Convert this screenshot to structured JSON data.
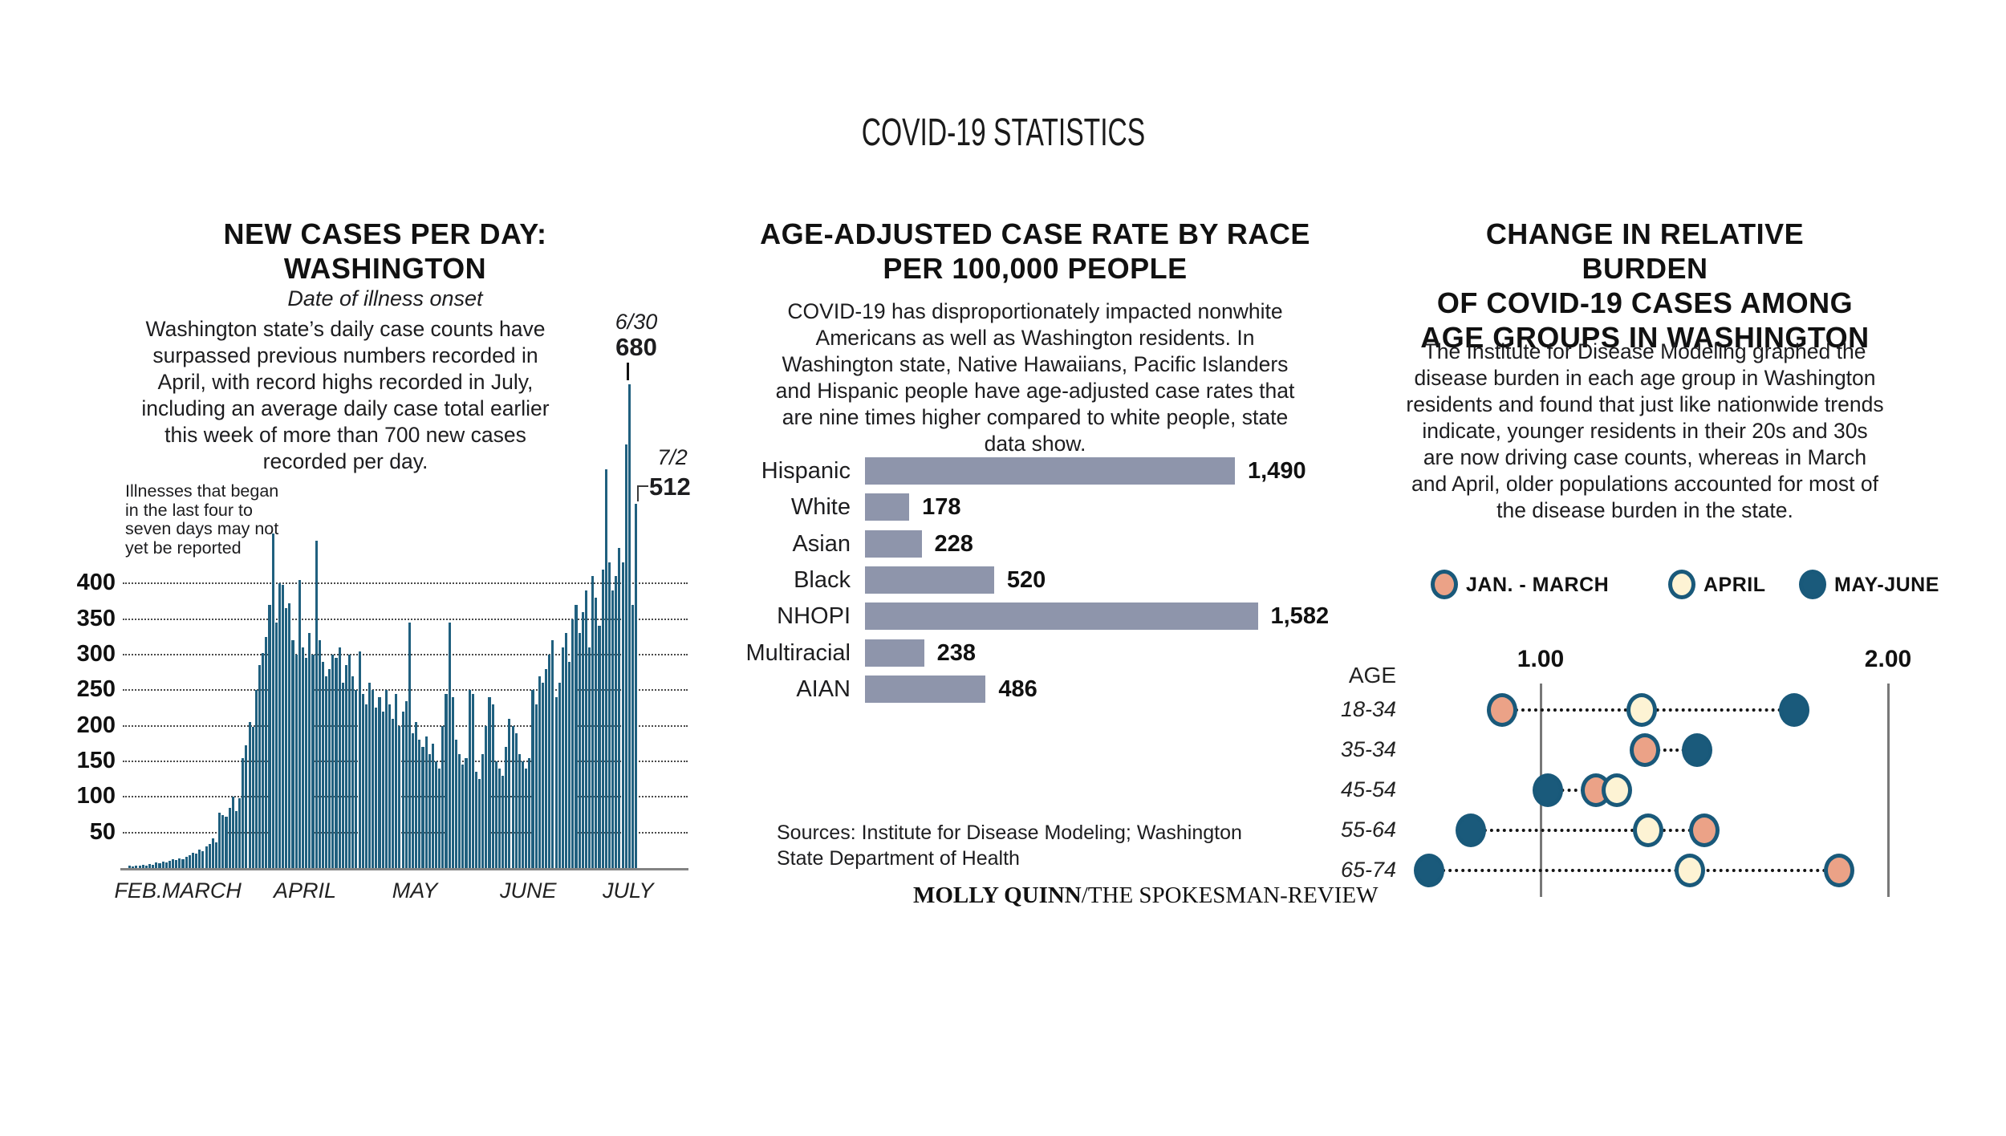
{
  "page_title": "COVID-19 STATISTICS",
  "colors": {
    "bar_teal": "#20607f",
    "bar_gray": "#8e95ab",
    "dot_jan_march": "#eba287",
    "dot_april": "#fdf3d4",
    "dot_may_june": "#1a5a7b",
    "dot_outline": "#19597a",
    "grid_dot": "#4a4a4a",
    "axis_gray": "#838383",
    "text": "#1d1d1f"
  },
  "left": {
    "title_line1": "NEW CASES PER DAY:",
    "title_line2": "WASHINGTON",
    "subtitle": "Date of illness onset",
    "description": "Washington state’s daily case counts have surpassed previous numbers recorded in April, with record highs recorded in July, including an average daily case total earlier this week of more than 700 new cases recorded per day.",
    "note": "Illnesses that began in the last four to seven days may not yet be reported"
  },
  "middle": {
    "title_line1": "AGE-ADJUSTED CASE RATE BY RACE",
    "title_line2": "PER 100,000 PEOPLE",
    "description": "COVID-19 has disproportionately impacted nonwhite Americans as well as Washington residents. In Washington state, Native Hawaiians, Pacific Islanders and Hispanic people have age-adjusted case rates that are nine times higher compared to white people, state data show.",
    "sources": "Sources: Institute for Disease Modeling; Washington State Department of Health",
    "credit_name": "MOLLY QUINN",
    "credit_rest": "/THE SPOKESMAN-REVIEW"
  },
  "right": {
    "title_line1": "CHANGE IN RELATIVE BURDEN",
    "title_line2": "OF COVID-19 CASES AMONG",
    "title_line3": "AGE GROUPS IN WASHINGTON",
    "description": "The Institute for Disease Modeling graphed the disease burden in each age group in Washington residents and found that just like nationwide trends indicate, younger residents in their 20s and 30s are now driving case counts, whereas in March and April, older populations accounted for most of the disease burden in the state."
  },
  "chart_data": [
    {
      "type": "bar",
      "title": "New cases per day: Washington",
      "xlabel": "Date of illness onset",
      "ylabel": "New cases",
      "ylim": [
        0,
        700
      ],
      "y_ticks": [
        400,
        350,
        300,
        250,
        200,
        150,
        100,
        50
      ],
      "grid": true,
      "x_months": [
        "FEB.",
        "MARCH",
        "APRIL",
        "MAY",
        "JUNE",
        "JULY"
      ],
      "month_label_day_index": [
        3,
        22,
        53,
        86,
        120,
        150
      ],
      "date_range": "Feb. 1 - July 2",
      "values": [
        3,
        2,
        4,
        3,
        5,
        4,
        6,
        5,
        8,
        7,
        9,
        8,
        10,
        12,
        11,
        14,
        13,
        16,
        18,
        22,
        20,
        26,
        24,
        30,
        34,
        42,
        36,
        78,
        74,
        72,
        85,
        100,
        80,
        98,
        155,
        172,
        205,
        198,
        250,
        285,
        302,
        325,
        370,
        470,
        345,
        400,
        398,
        365,
        372,
        320,
        300,
        405,
        310,
        295,
        330,
        300,
        460,
        320,
        290,
        270,
        280,
        300,
        295,
        310,
        260,
        285,
        300,
        270,
        250,
        305,
        245,
        230,
        260,
        250,
        225,
        240,
        220,
        250,
        230,
        210,
        245,
        200,
        220,
        235,
        345,
        190,
        205,
        180,
        170,
        185,
        160,
        175,
        150,
        140,
        200,
        245,
        345,
        240,
        180,
        160,
        145,
        155,
        250,
        245,
        135,
        125,
        160,
        200,
        240,
        230,
        150,
        140,
        130,
        170,
        210,
        200,
        190,
        160,
        150,
        140,
        155,
        250,
        230,
        270,
        260,
        280,
        300,
        320,
        240,
        260,
        310,
        330,
        290,
        350,
        370,
        330,
        360,
        390,
        310,
        410,
        380,
        340,
        420,
        560,
        430,
        390,
        410,
        450,
        430,
        595,
        680,
        370,
        512
      ],
      "annotations": [
        {
          "date": "6/30",
          "value": "680",
          "day_index": 150
        },
        {
          "date": "7/2",
          "value": "512",
          "day_index": 152
        }
      ]
    },
    {
      "type": "bar",
      "orientation": "horizontal",
      "title": "Age-adjusted case rate by race per 100,000 people",
      "categories": [
        "Hispanic",
        "White",
        "Asian",
        "Black",
        "NHOPI",
        "Multiracial",
        "AIAN"
      ],
      "values": [
        1490,
        178,
        228,
        520,
        1582,
        238,
        486
      ],
      "value_labels": [
        "1,490",
        "178",
        "228",
        "520",
        "1,582",
        "238",
        "486"
      ],
      "xlim": [
        0,
        1650
      ],
      "grid": false
    },
    {
      "type": "scatter",
      "title": "Change in relative burden of COVID-19 cases among age groups in Washington",
      "ylabel": "AGE",
      "categories": [
        "18-34",
        "35-34",
        "45-54",
        "55-64",
        "65-74"
      ],
      "x_ticks": [
        1.0,
        2.0
      ],
      "x_tick_labels": [
        "1.00",
        "2.00"
      ],
      "xlim": [
        0.6,
        2.1
      ],
      "legend_position": "top",
      "series": [
        {
          "name": "JAN. - MARCH",
          "key": "jan_march",
          "values": [
            0.89,
            1.3,
            1.16,
            1.47,
            1.86
          ]
        },
        {
          "name": "APRIL",
          "key": "april",
          "values": [
            1.29,
            null,
            1.22,
            1.31,
            1.43
          ]
        },
        {
          "name": "MAY-JUNE",
          "key": "may_june",
          "values": [
            1.73,
            1.45,
            1.02,
            0.8,
            0.68
          ]
        }
      ]
    }
  ]
}
